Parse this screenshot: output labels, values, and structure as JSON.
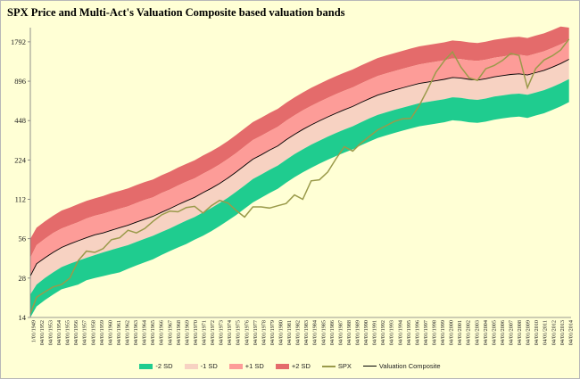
{
  "title": "SPX Price and  Multi-Act's Valuation  Composite based valuation bands",
  "chart_data": {
    "type": "area",
    "title": "SPX Price and  Multi-Act's Valuation  Composite based valuation bands",
    "yscale": "log2",
    "ylim": [
      14,
      2300
    ],
    "yticks": [
      14,
      28,
      56,
      112,
      224,
      448,
      896,
      1792
    ],
    "xlim": [
      1949.25,
      2014.25
    ],
    "xtick_labels": [
      "1/01/1949",
      "04/01/1952",
      "04/01/1953",
      "04/01/1954",
      "04/01/1955",
      "04/01/1956",
      "04/01/1957",
      "04/01/1958",
      "04/01/1959",
      "04/01/1960",
      "04/01/1961",
      "04/01/1962",
      "04/01/1963",
      "04/01/1964",
      "04/01/1965",
      "04/01/1966",
      "04/01/1967",
      "04/01/1968",
      "04/01/1969",
      "04/01/1970",
      "04/01/1971",
      "04/01/1972",
      "04/01/1973",
      "04/01/1974",
      "04/01/1975",
      "04/01/1976",
      "04/01/1977",
      "04/01/1978",
      "04/01/1979",
      "04/01/1980",
      "04/01/1981",
      "04/01/1982",
      "04/01/1983",
      "04/01/1984",
      "04/01/1985",
      "04/01/1986",
      "04/01/1987",
      "04/01/1988",
      "04/01/1989",
      "04/01/1990",
      "04/01/1991",
      "04/01/1992",
      "04/01/1993",
      "04/01/1994",
      "04/01/1995",
      "04/01/1996",
      "04/01/1997",
      "04/01/1998",
      "04/01/1999",
      "04/01/2000",
      "04/01/2001",
      "04/01/2002",
      "04/01/2003",
      "04/01/2004",
      "04/01/2005",
      "04/01/2006",
      "04/01/2007",
      "04/01/2008",
      "04/01/2009",
      "04/01/2010",
      "04/01/2011",
      "04/01/2012",
      "04/01/2013",
      "04/01/2014"
    ],
    "x": [
      1949.25,
      1950,
      1951,
      1952,
      1953,
      1954,
      1955,
      1956,
      1957,
      1958,
      1959,
      1960,
      1961,
      1962,
      1963,
      1964,
      1965,
      1966,
      1967,
      1968,
      1969,
      1970,
      1971,
      1972,
      1973,
      1974,
      1975,
      1976,
      1977,
      1978,
      1979,
      1980,
      1981,
      1982,
      1983,
      1984,
      1985,
      1986,
      1987,
      1988,
      1989,
      1990,
      1991,
      1992,
      1993,
      1994,
      1995,
      1996,
      1997,
      1998,
      1999,
      2000,
      2001,
      2002,
      2003,
      2004,
      2005,
      2006,
      2007,
      2008,
      2009,
      2010,
      2011,
      2012,
      2013,
      2014
    ],
    "legend": [
      "-2 SD",
      "-1 SD",
      "+1 SD",
      "+2 SD",
      "SPX",
      "Valuation Composite"
    ],
    "legend_position": "bottom",
    "colors": {
      "minus2": "#1fcc8f",
      "minus1": "#f7d2c2",
      "plus1": "#fd9c98",
      "plus2": "#e46b6b",
      "spx": "#9a9a4a",
      "composite": "#000000"
    },
    "series": [
      {
        "name": "-2 SD",
        "values": [
          14,
          17,
          19,
          21,
          23,
          24,
          25,
          27,
          28,
          29,
          30,
          31,
          33,
          35,
          37,
          39,
          42,
          45,
          48,
          51,
          55,
          59,
          64,
          70,
          77,
          85,
          95,
          106,
          115,
          125,
          135,
          150,
          165,
          180,
          195,
          210,
          225,
          240,
          255,
          270,
          290,
          310,
          330,
          345,
          360,
          375,
          390,
          405,
          415,
          425,
          435,
          450,
          445,
          435,
          430,
          440,
          455,
          465,
          475,
          480,
          470,
          490,
          510,
          540,
          575,
          620
        ]
      },
      {
        "name": "-1 SD",
        "values": [
          21,
          25,
          28,
          31,
          34,
          36,
          38,
          40,
          42,
          44,
          46,
          48,
          50,
          53,
          56,
          59,
          63,
          67,
          72,
          77,
          82,
          89,
          96,
          105,
          115,
          128,
          143,
          160,
          173,
          188,
          203,
          225,
          248,
          270,
          293,
          315,
          338,
          360,
          383,
          405,
          435,
          465,
          495,
          518,
          540,
          563,
          585,
          608,
          623,
          638,
          653,
          675,
          668,
          653,
          645,
          660,
          683,
          698,
          713,
          720,
          705,
          735,
          765,
          810,
          863,
          930
        ]
      },
      {
        "name": "Valuation Composite",
        "values": [
          29,
          36,
          40,
          44,
          48,
          51,
          54,
          57,
          60,
          62,
          65,
          68,
          71,
          75,
          79,
          83,
          89,
          95,
          102,
          109,
          116,
          126,
          136,
          148,
          163,
          181,
          203,
          227,
          245,
          266,
          287,
          319,
          351,
          383,
          415,
          446,
          478,
          510,
          542,
          574,
          616,
          658,
          701,
          733,
          765,
          797,
          829,
          861,
          882,
          903,
          925,
          956,
          946,
          925,
          914,
          935,
          967,
          988,
          1009,
          1020,
          999,
          1041,
          1084,
          1148,
          1222,
          1318
        ]
      },
      {
        "name": "+1 SD",
        "values": [
          40,
          50,
          56,
          62,
          67,
          71,
          75,
          80,
          84,
          87,
          91,
          95,
          99,
          105,
          111,
          116,
          125,
          133,
          143,
          153,
          162,
          176,
          190,
          207,
          228,
          253,
          284,
          318,
          343,
          372,
          402,
          447,
          491,
          536,
          581,
          624,
          669,
          714,
          759,
          804,
          862,
          921,
          981,
          1026,
          1071,
          1116,
          1161,
          1205,
          1235,
          1264,
          1295,
          1338,
          1324,
          1295,
          1280,
          1309,
          1354,
          1383,
          1413,
          1428,
          1399,
          1457,
          1518,
          1607,
          1711,
          1845
        ]
      },
      {
        "name": "+2 SD",
        "values": [
          56,
          68,
          76,
          84,
          92,
          97,
          103,
          109,
          114,
          119,
          125,
          130,
          136,
          144,
          152,
          159,
          171,
          182,
          196,
          209,
          223,
          242,
          261,
          284,
          313,
          348,
          390,
          436,
          471,
          511,
          551,
          612,
          673,
          735,
          797,
          856,
          918,
          979,
          1041,
          1102,
          1182,
          1263,
          1346,
          1407,
          1469,
          1530,
          1592,
          1653,
          1694,
          1734,
          1776,
          1836,
          1816,
          1776,
          1755,
          1796,
          1857,
          1897,
          1938,
          1959,
          1918,
          1999,
          2081,
          2204,
          2346,
          2300
        ]
      },
      {
        "name": "SPX",
        "values": [
          15,
          20,
          22,
          24,
          25,
          28,
          38,
          45,
          44,
          47,
          55,
          57,
          65,
          62,
          67,
          76,
          85,
          91,
          90,
          97,
          99,
          88,
          100,
          110,
          105,
          92,
          82,
          98,
          98,
          96,
          100,
          104,
          121,
          112,
          155,
          158,
          181,
          229,
          283,
          262,
          301,
          339,
          380,
          409,
          441,
          462,
          465,
          585,
          775,
          1050,
          1280,
          1500,
          1150,
          950,
          910,
          1115,
          1180,
          1290,
          1460,
          1410,
          800,
          1120,
          1300,
          1400,
          1550,
          1880
        ]
      }
    ]
  }
}
